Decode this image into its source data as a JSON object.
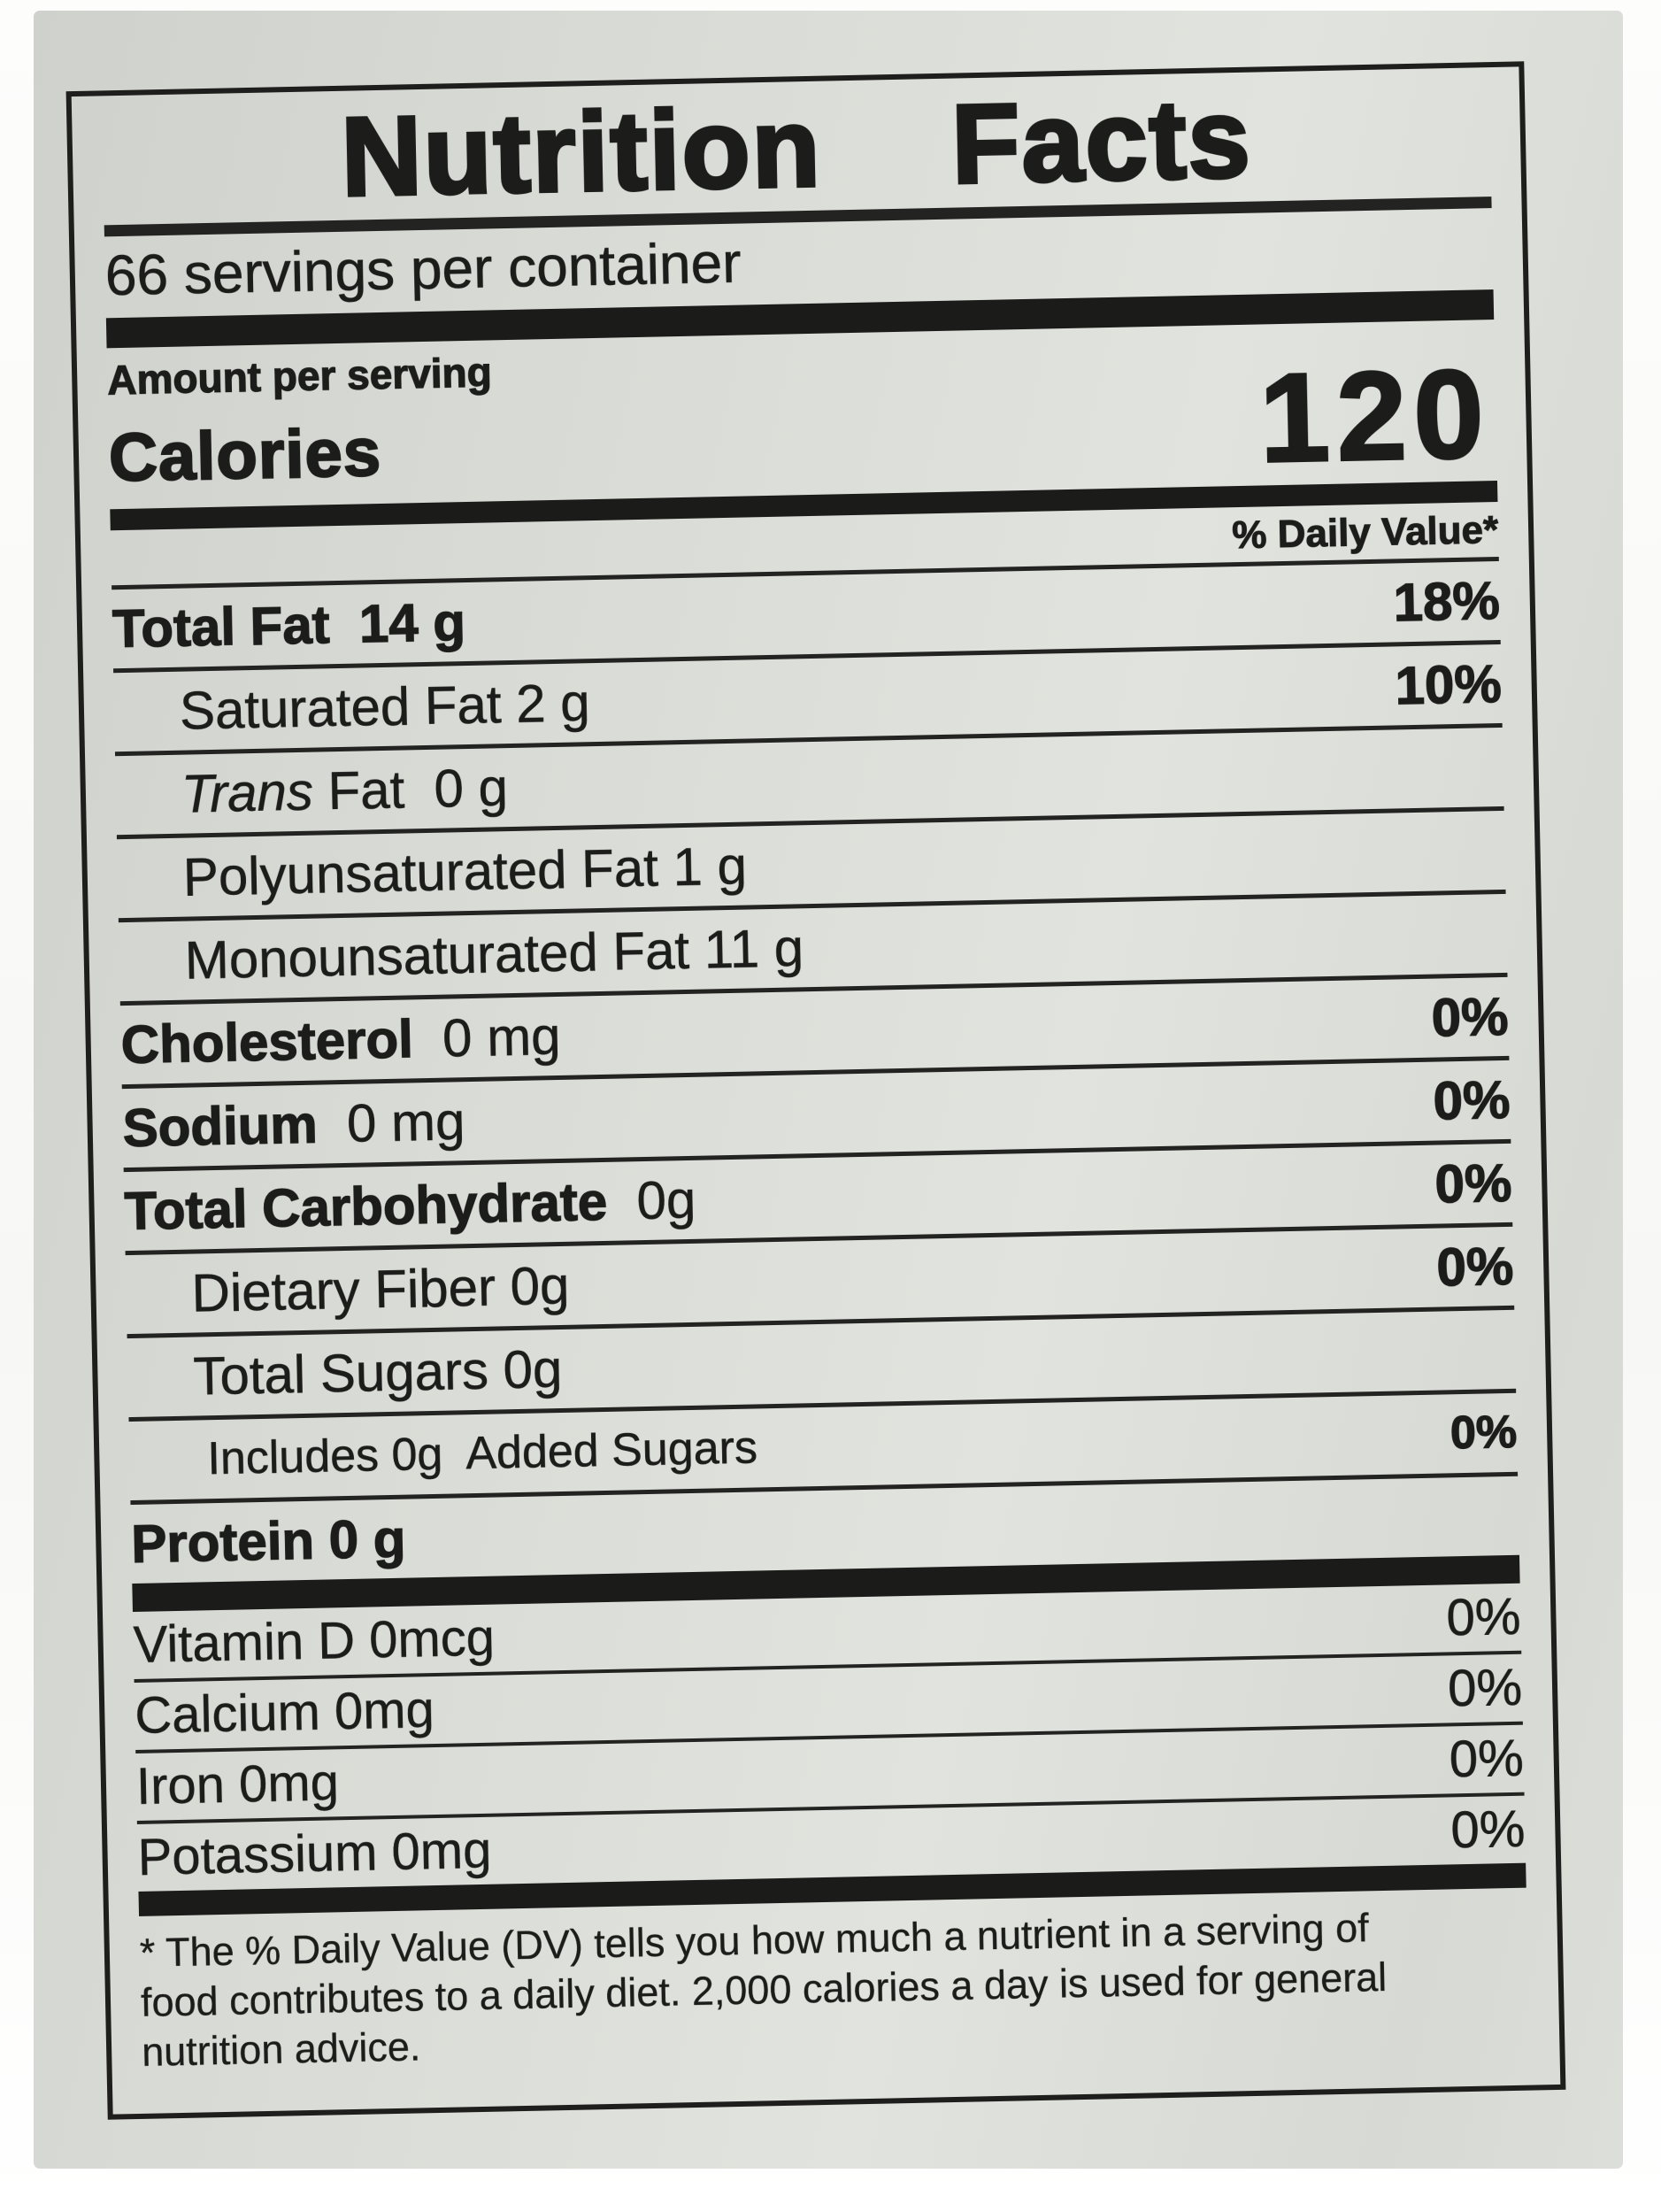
{
  "colors": {
    "ink": "#1c1c1a",
    "paper_gray": "#d9dbd6",
    "photo_edge_white": "#f7f7f5"
  },
  "label": {
    "title": "Nutrition Facts",
    "servings_per_container": "66 servings per container",
    "amount_per_serving": "Amount per serving",
    "calories_label": "Calories",
    "calories_value": "120",
    "daily_value_header": "% Daily Value*",
    "nutrients": [
      {
        "segments": [
          {
            "text": "Total Fat",
            "bold": true
          },
          {
            "text": "  14 g",
            "bold": true
          }
        ],
        "pct": "18%",
        "indent": 0
      },
      {
        "segments": [
          {
            "text": "Saturated Fat 2 g"
          }
        ],
        "pct": "10%",
        "indent": 1
      },
      {
        "segments": [
          {
            "text": "Trans",
            "italic": true
          },
          {
            "text": " Fat  0 g"
          }
        ],
        "pct": "",
        "indent": 1
      },
      {
        "segments": [
          {
            "text": "Polyunsaturated Fat 1 g"
          }
        ],
        "pct": "",
        "indent": 1
      },
      {
        "segments": [
          {
            "text": "Monounsaturated Fat 11 g"
          }
        ],
        "pct": "",
        "indent": 1
      },
      {
        "segments": [
          {
            "text": "Cholesterol",
            "bold": true
          },
          {
            "text": "  0 mg"
          }
        ],
        "pct": "0%",
        "indent": 0
      },
      {
        "segments": [
          {
            "text": "Sodium",
            "bold": true
          },
          {
            "text": "  0 mg"
          }
        ],
        "pct": "0%",
        "indent": 0
      },
      {
        "segments": [
          {
            "text": "Total Carbohydrate",
            "bold": true
          },
          {
            "text": "  0g"
          }
        ],
        "pct": "0%",
        "indent": 0
      },
      {
        "segments": [
          {
            "text": "Dietary Fiber 0g"
          }
        ],
        "pct": "0%",
        "indent": 1
      },
      {
        "segments": [
          {
            "text": "Total Sugars 0g"
          }
        ],
        "pct": "",
        "indent": 1
      },
      {
        "segments": [
          {
            "text": "Includes 0g  Added Sugars"
          }
        ],
        "pct": "0%",
        "indent": 2,
        "small": true
      },
      {
        "segments": [
          {
            "text": "Protein",
            "bold": true
          },
          {
            "text": " 0 g",
            "bold": true
          }
        ],
        "pct": "",
        "indent": 0
      }
    ],
    "vitamins": [
      {
        "name": "Vitamin D 0mcg",
        "pct": "0%"
      },
      {
        "name": "Calcium 0mg",
        "pct": "0%"
      },
      {
        "name": "Iron 0mg",
        "pct": "0%"
      },
      {
        "name": "Potassium 0mg",
        "pct": "0%"
      }
    ],
    "footnote_lines": [
      "* The % Daily Value (DV) tells you how much a nutrient in a serving of",
      "food contributes to a daily diet. 2,000 calories a day is used for general",
      "nutrition advice."
    ]
  }
}
